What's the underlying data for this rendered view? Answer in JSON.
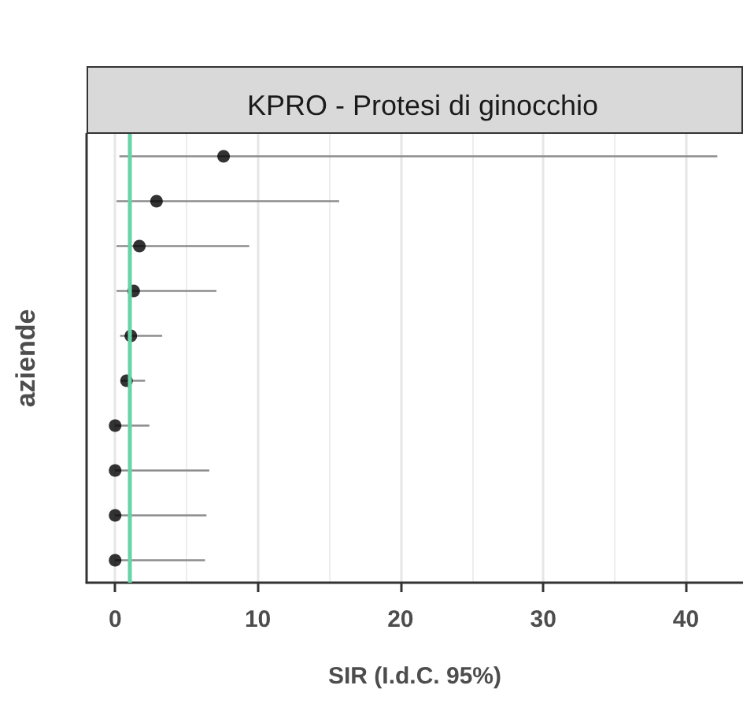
{
  "chart_data": {
    "type": "scatter",
    "orientation": "horizontal",
    "title": "KPRO - Protesi di ginocchio",
    "xlabel": "SIR (I.d.C. 95%)",
    "ylabel": "aziende",
    "categories": [
      null,
      null,
      null,
      null,
      null,
      null,
      null,
      null,
      null,
      null
    ],
    "series": [
      {
        "color": "#000000",
        "values": [
          7.6,
          2.9,
          1.7,
          1.3,
          1.1,
          0.8,
          0,
          0,
          0,
          0
        ],
        "errors": [
          [
            0.3,
            42.2
          ],
          [
            0.1,
            15.7
          ],
          [
            0.1,
            9.4
          ],
          [
            0.1,
            7.1
          ],
          [
            0.35,
            3.3
          ],
          [
            0.4,
            2.1
          ],
          [
            0,
            2.4
          ],
          [
            0,
            6.6
          ],
          [
            0,
            6.4
          ],
          [
            0,
            6.3
          ]
        ]
      }
    ],
    "xlim": [
      -2,
      44
    ],
    "xticks": [
      0,
      10,
      20,
      30,
      40
    ],
    "grid": "x",
    "marker": "circle",
    "ref_lines": [
      {
        "axis": "x",
        "value": 1,
        "color": "#66d4a6"
      }
    ]
  }
}
